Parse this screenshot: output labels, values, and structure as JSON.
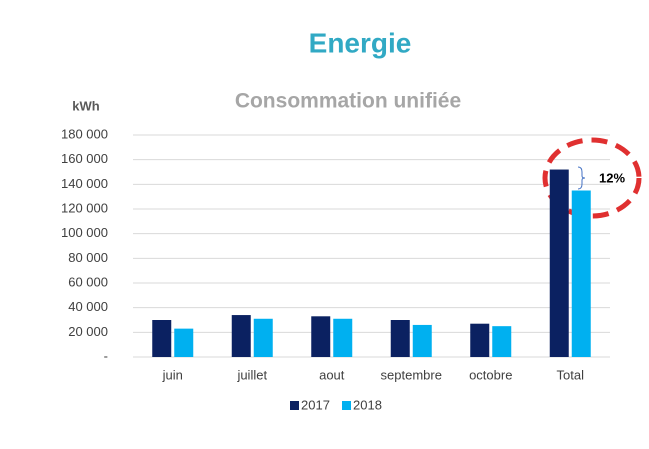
{
  "chart_data": {
    "type": "bar",
    "title": "Energie",
    "subtitle": "Consommation unifiée",
    "y_label": "kWh",
    "categories": [
      "juin",
      "juillet",
      "aout",
      "septembre",
      "octobre",
      "Total"
    ],
    "series": [
      {
        "name": "2017",
        "color": "#0b2161",
        "values": [
          30000,
          34000,
          33000,
          30000,
          27000,
          152000
        ]
      },
      {
        "name": "2018",
        "color": "#00b0f0",
        "values": [
          23000,
          31000,
          31000,
          26000,
          25000,
          135000
        ]
      }
    ],
    "ylim": [
      0,
      180000
    ],
    "yticks": [
      {
        "value": 0,
        "label": "-"
      },
      {
        "value": 20000,
        "label": "20 000"
      },
      {
        "value": 40000,
        "label": "40 000"
      },
      {
        "value": 60000,
        "label": "60 000"
      },
      {
        "value": 80000,
        "label": "80 000"
      },
      {
        "value": 100000,
        "label": "100 000"
      },
      {
        "value": 120000,
        "label": "120 000"
      },
      {
        "value": 140000,
        "label": "140 000"
      },
      {
        "value": 160000,
        "label": "160 000"
      },
      {
        "value": 180000,
        "label": "180 000"
      }
    ],
    "grid": true,
    "legend": "bottom",
    "annotation": "12%"
  }
}
